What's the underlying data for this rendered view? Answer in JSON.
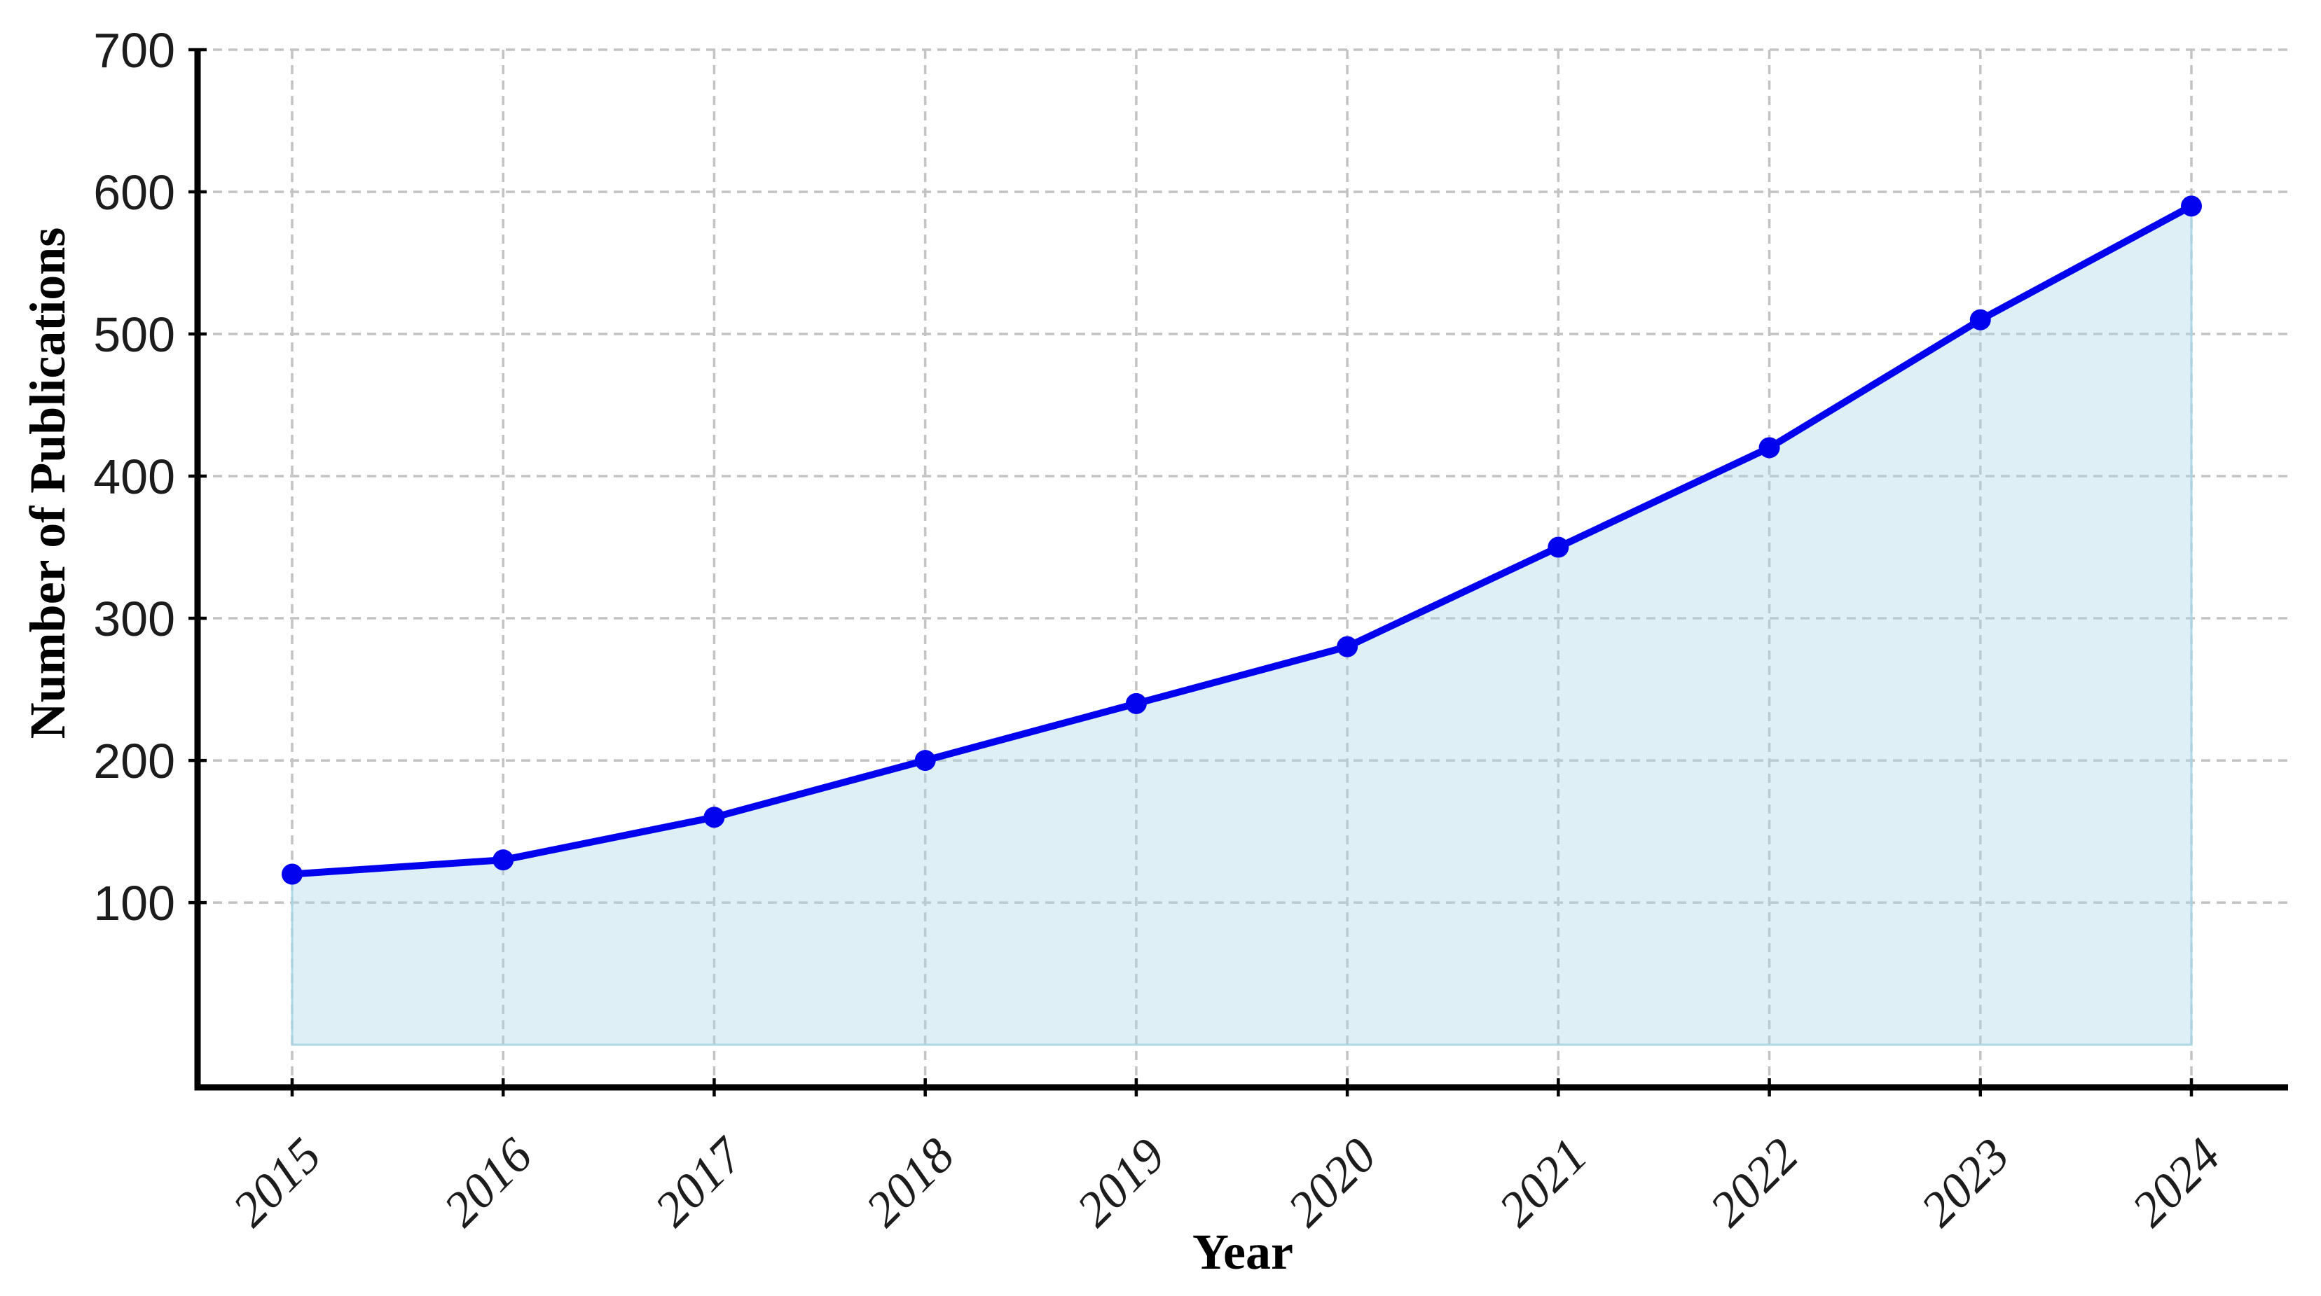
{
  "chart_data": {
    "type": "line",
    "title": "",
    "categories": [
      "2015",
      "2016",
      "2017",
      "2018",
      "2019",
      "2020",
      "2021",
      "2022",
      "2023",
      "2024"
    ],
    "series": [
      {
        "name": "Number of Publications",
        "values": [
          120,
          130,
          160,
          200,
          240,
          280,
          350,
          420,
          510,
          590
        ]
      }
    ],
    "xlabel": "Year",
    "ylabel": "Number of Publications",
    "y_ticks": [
      100,
      200,
      300,
      400,
      500,
      600,
      700
    ],
    "ylim": [
      -30,
      700
    ],
    "x_tick_rotation_deg": 45,
    "grid": "dashed",
    "legend": false,
    "fill_to_zero": true,
    "marker": "circle",
    "colors": {
      "line": "#0202ee",
      "marker": "#0202ee",
      "fill": "rgba(173,216,230,0.40)",
      "fill_edge": "rgba(168,212,228,0.90)",
      "grid": "#c3c3c3",
      "spine": "#000000",
      "tick_label": "#1c1c1c",
      "axis_label": "#000000"
    }
  }
}
